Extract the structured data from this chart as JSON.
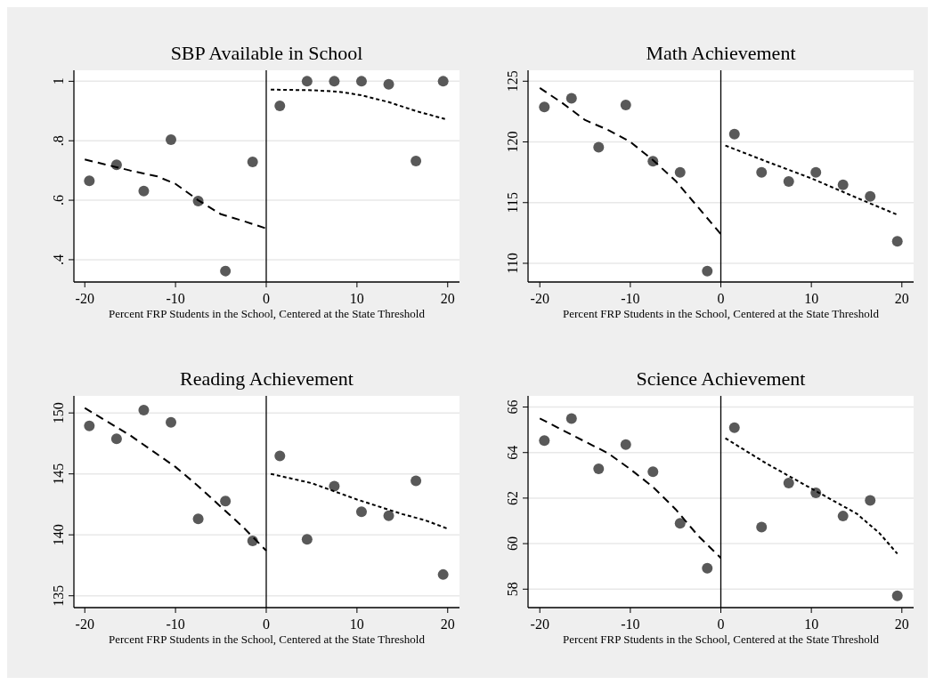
{
  "chart_data": [
    {
      "type": "scatter",
      "title": "SBP Available in School",
      "xlabel": "Percent FRP Students in the School, Centered at the State Threshold",
      "xlim": [
        -21.2,
        21.3
      ],
      "xticks": [
        -20,
        -10,
        0,
        10,
        20
      ],
      "ylim": [
        0.325,
        1.037
      ],
      "yticks": [
        {
          "value": 0.4,
          "label": ".4"
        },
        {
          "value": 0.6,
          "label": ".6"
        },
        {
          "value": 0.8,
          "label": ".8"
        },
        1
      ],
      "grid": "y",
      "ref_lines": [
        {
          "axis": "x",
          "value": 0,
          "color": "#000000",
          "line_style": "solid"
        }
      ],
      "series": [
        {
          "marker": "circle",
          "color": "#595959",
          "x": [
            -19.5,
            -16.5,
            -13.5,
            -10.5,
            -7.5,
            -4.5,
            -1.5,
            1.5,
            4.5,
            7.5,
            10.5,
            13.5,
            16.5,
            19.5
          ],
          "values": [
            0.665,
            0.719,
            0.631,
            0.804,
            0.597,
            0.362,
            0.729,
            0.917,
            1.0,
            1.0,
            1.0,
            0.99,
            0.732,
            1.0
          ]
        },
        {
          "type": "line",
          "marker": "none",
          "line_style": "dashed",
          "color": "#000000",
          "x": [
            -20,
            -15,
            -12,
            -10,
            -7.5,
            -5,
            -2.5,
            0
          ],
          "values": [
            0.737,
            0.7,
            0.68,
            0.655,
            0.6,
            0.553,
            0.53,
            0.505
          ]
        },
        {
          "type": "line",
          "marker": "none",
          "line_style": "dotted",
          "color": "#000000",
          "x": [
            0.5,
            5,
            8,
            10.5,
            13.5,
            16.5,
            19.7
          ],
          "values": [
            0.972,
            0.97,
            0.965,
            0.953,
            0.93,
            0.9,
            0.873
          ]
        }
      ]
    },
    {
      "type": "scatter",
      "title": "Math Achievement",
      "xlabel": "Percent FRP Students in the School, Centered at the State Threshold",
      "xlim": [
        -21.3,
        21.3
      ],
      "xticks": [
        -20,
        -10,
        0,
        10,
        20
      ],
      "ylim": [
        108.46,
        125.9
      ],
      "yticks": [
        110,
        115,
        120,
        125
      ],
      "grid": "y",
      "ref_lines": [
        {
          "axis": "x",
          "value": 0,
          "color": "#000000",
          "line_style": "solid"
        }
      ],
      "series": [
        {
          "marker": "circle",
          "color": "#595959",
          "x": [
            -19.5,
            -16.5,
            -13.5,
            -10.5,
            -7.5,
            -4.5,
            -1.5,
            1.5,
            4.5,
            7.5,
            10.5,
            13.5,
            16.5,
            19.5
          ],
          "values": [
            122.87,
            123.6,
            119.56,
            123.04,
            118.4,
            117.5,
            109.36,
            120.64,
            117.5,
            116.74,
            117.5,
            116.47,
            115.51,
            111.81
          ]
        },
        {
          "type": "line",
          "marker": "none",
          "line_style": "dashed",
          "color": "#000000",
          "x": [
            -20,
            -17.5,
            -15,
            -12.5,
            -10,
            -7.5,
            -5,
            -2.5,
            0
          ],
          "values": [
            124.44,
            123.2,
            121.8,
            121.0,
            120.0,
            118.5,
            116.8,
            114.6,
            112.4
          ]
        },
        {
          "type": "line",
          "marker": "none",
          "line_style": "dotted",
          "color": "#000000",
          "x": [
            0.5,
            5,
            10,
            15,
            19.5
          ],
          "values": [
            119.7,
            118.4,
            117.0,
            115.4,
            114.0
          ]
        }
      ]
    },
    {
      "type": "scatter",
      "title": "Reading Achievement",
      "xlabel": "Percent FRP Students in the School, Centered at the State Threshold",
      "xlim": [
        -21.2,
        21.3
      ],
      "xticks": [
        -20,
        -10,
        0,
        10,
        20
      ],
      "ylim": [
        134.03,
        151.4
      ],
      "yticks": [
        135,
        140,
        145,
        150
      ],
      "grid": "y",
      "ref_lines": [
        {
          "axis": "x",
          "value": 0,
          "color": "#000000",
          "line_style": "solid"
        }
      ],
      "series": [
        {
          "marker": "circle",
          "color": "#595959",
          "x": [
            -19.5,
            -16.5,
            -13.5,
            -10.5,
            -7.5,
            -4.5,
            -1.5,
            1.5,
            4.5,
            7.5,
            10.5,
            13.5,
            16.5,
            19.5
          ],
          "values": [
            148.94,
            147.87,
            150.24,
            149.23,
            141.31,
            142.77,
            139.5,
            146.47,
            139.64,
            144.0,
            141.9,
            141.56,
            144.43,
            136.74
          ]
        },
        {
          "type": "line",
          "marker": "none",
          "line_style": "dashed",
          "color": "#000000",
          "x": [
            -20,
            -15,
            -10,
            -7.5,
            -5,
            -2.5,
            0
          ],
          "values": [
            150.4,
            148.16,
            145.57,
            144.0,
            142.3,
            140.6,
            138.7
          ]
        },
        {
          "type": "line",
          "marker": "none",
          "line_style": "dotted",
          "color": "#000000",
          "x": [
            0.5,
            5,
            10,
            15,
            17.5,
            20
          ],
          "values": [
            145.0,
            144.24,
            142.9,
            141.7,
            141.2,
            140.5
          ]
        }
      ]
    },
    {
      "type": "scatter",
      "title": "Science Achievement",
      "xlabel": "Percent FRP Students in the School, Centered at the State Threshold",
      "xlim": [
        -21.3,
        21.3
      ],
      "xticks": [
        -20,
        -10,
        0,
        10,
        20
      ],
      "ylim": [
        57.19,
        66.49
      ],
      "yticks": [
        58,
        60,
        62,
        64,
        66
      ],
      "grid": "y",
      "ref_lines": [
        {
          "axis": "x",
          "value": 0,
          "color": "#000000",
          "line_style": "solid"
        }
      ],
      "series": [
        {
          "marker": "circle",
          "color": "#595959",
          "x": [
            -19.5,
            -16.5,
            -13.5,
            -10.5,
            -7.5,
            -4.5,
            -1.5,
            1.5,
            4.5,
            7.5,
            10.5,
            13.5,
            16.5,
            19.5
          ],
          "values": [
            64.53,
            65.49,
            63.29,
            64.35,
            63.16,
            60.89,
            58.92,
            65.09,
            60.73,
            62.66,
            62.23,
            61.21,
            61.9,
            57.71
          ]
        },
        {
          "type": "line",
          "marker": "none",
          "line_style": "dashed",
          "color": "#000000",
          "x": [
            -20,
            -15,
            -12.5,
            -10,
            -7.5,
            -5,
            -2.5,
            0
          ],
          "values": [
            65.5,
            64.48,
            63.98,
            63.27,
            62.49,
            61.51,
            60.34,
            59.37
          ]
        },
        {
          "type": "line",
          "marker": "none",
          "line_style": "dotted",
          "color": "#000000",
          "x": [
            0.5,
            5,
            10,
            15,
            17.5,
            19.5
          ],
          "values": [
            64.63,
            63.53,
            62.42,
            61.32,
            60.47,
            59.56
          ]
        }
      ]
    }
  ]
}
